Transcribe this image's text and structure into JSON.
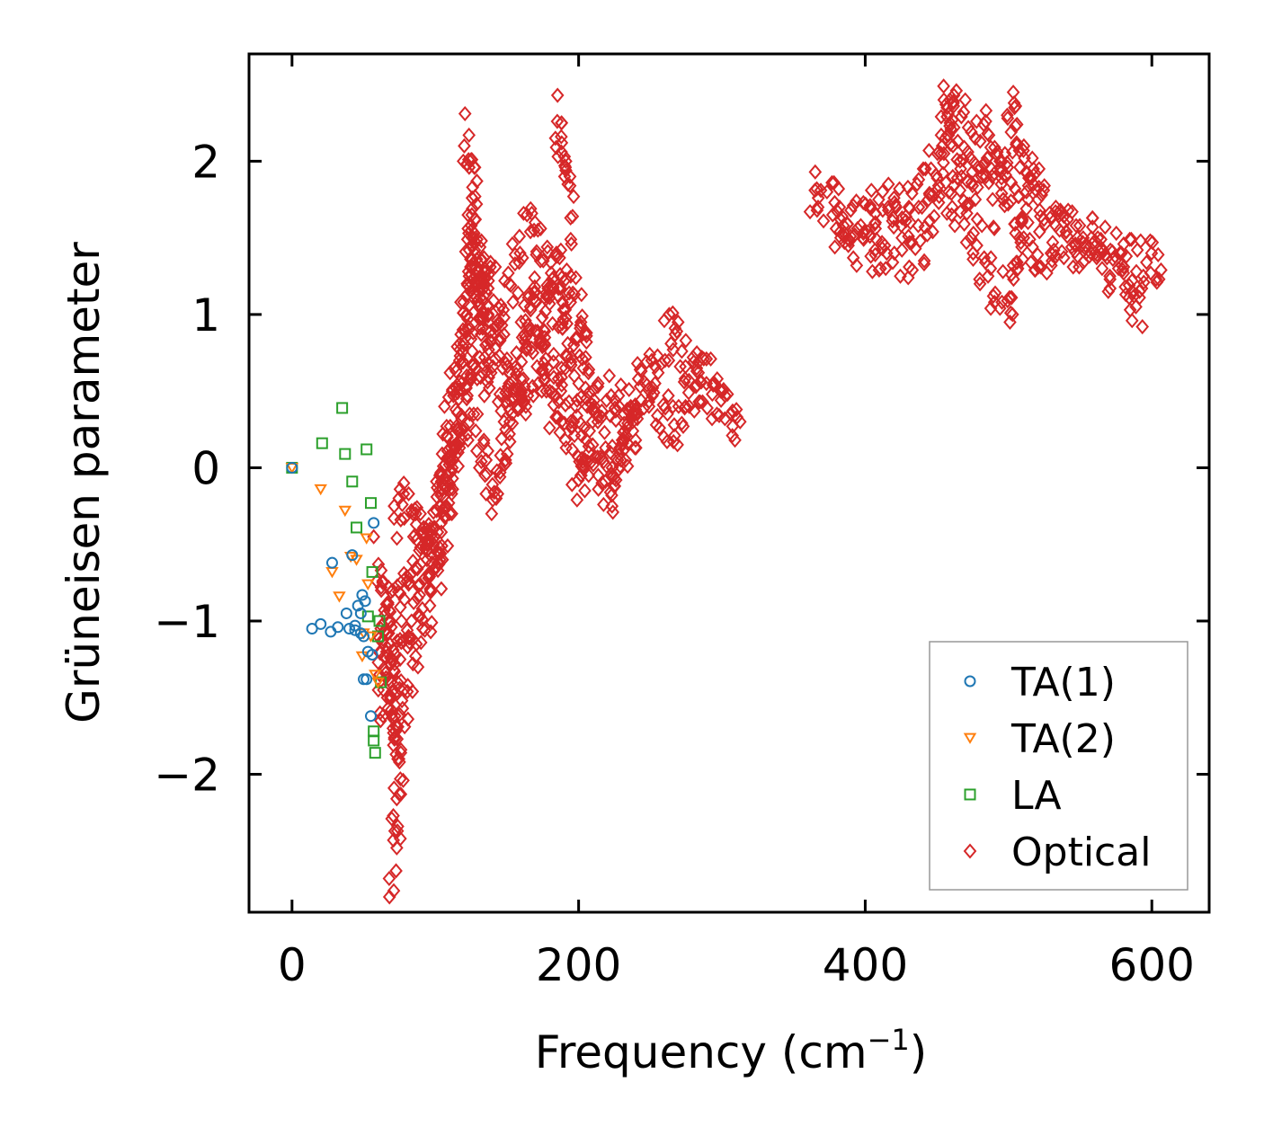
{
  "chart_data": {
    "type": "scatter",
    "title": "",
    "xlabel": "Frequency (cm",
    "xlabel_sup": "−1",
    "xlabel_close": ")",
    "ylabel": "Grüneisen parameter",
    "xlim": [
      -30,
      640
    ],
    "ylim": [
      -2.9,
      2.7
    ],
    "xticks": [
      0,
      200,
      400,
      600
    ],
    "xtick_labels": [
      "0",
      "200",
      "400",
      "600"
    ],
    "yticks": [
      -2,
      -1,
      0,
      1,
      2
    ],
    "ytick_labels": [
      "−2",
      "−1",
      "0",
      "1",
      "2"
    ],
    "grid": false,
    "legend_position": "lower-right",
    "series": [
      {
        "name": "TA(1)",
        "marker": "circle",
        "color": "#1f77b4",
        "x": [
          0,
          14,
          20,
          27,
          28,
          32,
          38,
          40,
          42,
          44,
          46,
          48,
          49,
          50,
          51,
          52,
          55,
          56,
          57,
          48,
          50,
          53,
          44
        ],
        "y": [
          0.0,
          -1.05,
          -1.02,
          -1.07,
          -0.62,
          -1.04,
          -0.95,
          -1.05,
          -0.57,
          -1.03,
          -0.9,
          -1.08,
          -0.83,
          -1.38,
          -0.87,
          -1.38,
          -1.62,
          -1.22,
          -0.36,
          -0.95,
          -1.1,
          -1.2,
          -1.06
        ]
      },
      {
        "name": "TA(2)",
        "marker": "triangle-down",
        "color": "#ff7f0e",
        "x": [
          0,
          20,
          28,
          33,
          37,
          41,
          45,
          49,
          52,
          53,
          55,
          58,
          60,
          50
        ],
        "y": [
          0.0,
          -0.14,
          -0.68,
          -0.84,
          -0.28,
          -0.58,
          -0.6,
          -1.23,
          -0.46,
          -0.76,
          -1.1,
          -1.35,
          -1.4,
          -1.08
        ]
      },
      {
        "name": "LA",
        "marker": "square",
        "color": "#2ca02c",
        "x": [
          0,
          21,
          35,
          37,
          42,
          45,
          52,
          55,
          56,
          57,
          58,
          60,
          61,
          62,
          53,
          57
        ],
        "y": [
          0.0,
          0.16,
          0.39,
          0.09,
          -0.09,
          -0.39,
          0.12,
          -0.23,
          -0.68,
          -1.72,
          -1.86,
          -1.1,
          -1.0,
          -1.4,
          -0.97,
          -1.78
        ]
      },
      {
        "name": "Optical",
        "marker": "diamond",
        "color": "#d62728",
        "x": [],
        "y": []
      }
    ]
  }
}
